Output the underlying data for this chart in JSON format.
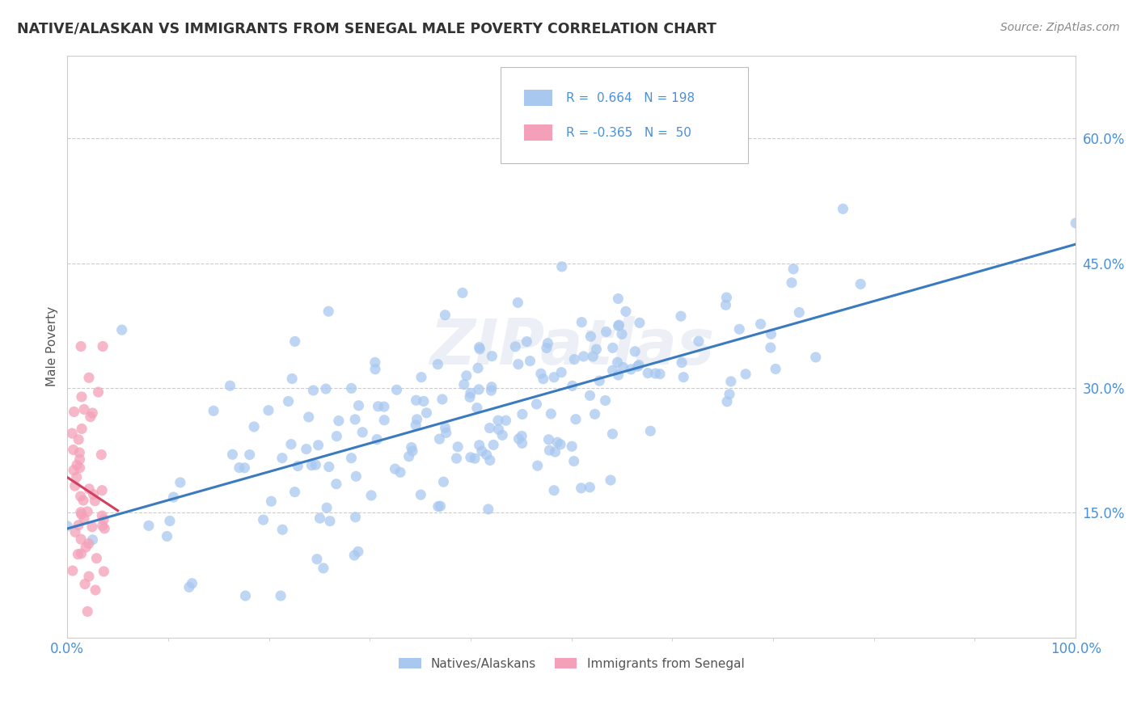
{
  "title": "NATIVE/ALASKAN VS IMMIGRANTS FROM SENEGAL MALE POVERTY CORRELATION CHART",
  "source_text": "Source: ZipAtlas.com",
  "ylabel": "Male Poverty",
  "xlim": [
    0,
    1.0
  ],
  "ylim": [
    0,
    0.7
  ],
  "yticks": [
    0.15,
    0.3,
    0.45,
    0.6
  ],
  "ytick_labels": [
    "15.0%",
    "30.0%",
    "45.0%",
    "60.0%"
  ],
  "xtick_labels": [
    "0.0%",
    "100.0%"
  ],
  "r_native": 0.664,
  "n_native": 198,
  "r_senegal": -0.365,
  "n_senegal": 50,
  "native_color": "#a8c8f0",
  "senegal_color": "#f4a0b8",
  "native_line_color": "#3a7abf",
  "senegal_line_color": "#d04060",
  "legend_native_label": "Natives/Alaskans",
  "legend_senegal_label": "Immigrants from Senegal",
  "watermark": "ZIPatlas",
  "background_color": "#ffffff",
  "grid_color": "#cccccc",
  "title_color": "#333333",
  "axis_color": "#888888",
  "tick_color": "#4a90d9"
}
